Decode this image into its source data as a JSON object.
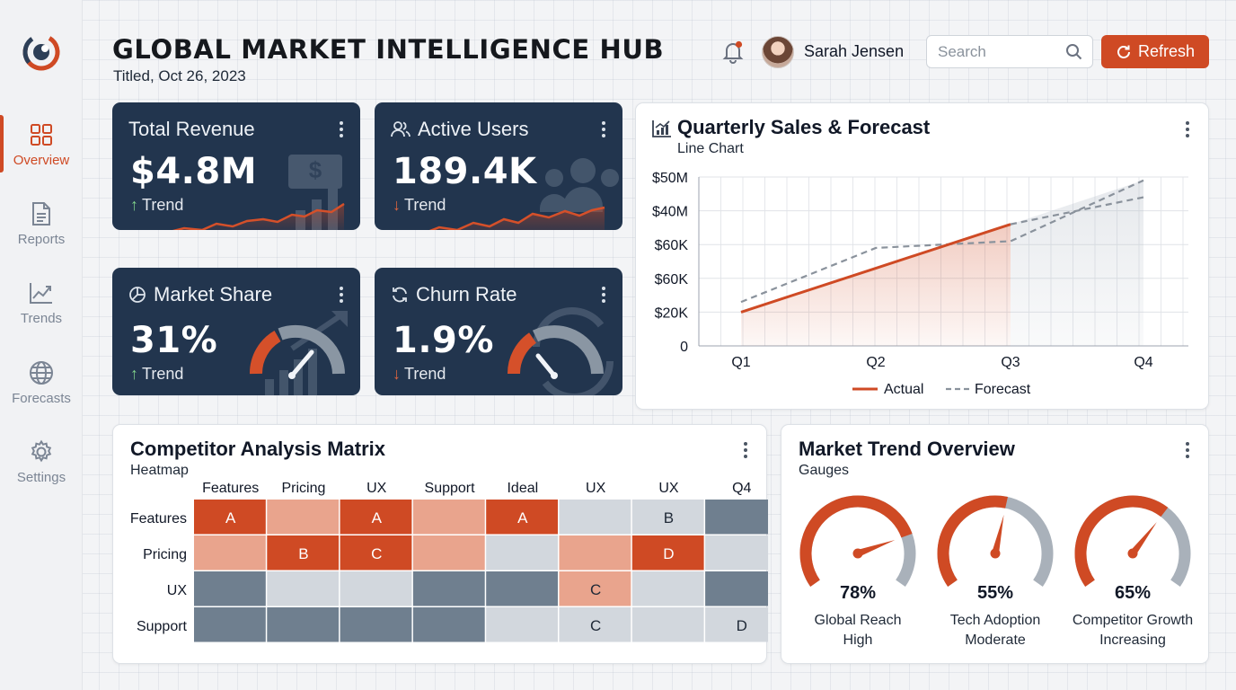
{
  "app": {
    "title": "GLOBAL MARKET INTELLIGENCE HUB",
    "subtitle": "Titled, Oct 26, 2023",
    "user_name": "Sarah Jensen",
    "search_placeholder": "Search",
    "refresh_label": "Refresh"
  },
  "sidebar": {
    "items": [
      {
        "label": "Overview",
        "icon": "grid-icon",
        "active": true
      },
      {
        "label": "Reports",
        "icon": "document-icon",
        "active": false
      },
      {
        "label": "Trends",
        "icon": "line-trend-icon",
        "active": false
      },
      {
        "label": "Forecasts",
        "icon": "globe-icon",
        "active": false
      },
      {
        "label": "Settings",
        "icon": "gear-icon",
        "active": false
      }
    ]
  },
  "kpis": [
    {
      "title": "Total Revenue",
      "value": "$4.8M",
      "trend": "Trend",
      "direction": "up"
    },
    {
      "title": "Active Users",
      "value": "189.4K",
      "trend": "Trend",
      "direction": "down"
    },
    {
      "title": "Market Share",
      "value": "31%",
      "trend": "Trend",
      "direction": "up"
    },
    {
      "title": "Churn Rate",
      "value": "1.9%",
      "trend": "Trend",
      "direction": "down"
    }
  ],
  "sales_chart": {
    "title": "Quarterly Sales & Forecast",
    "subtitle": "Line Chart",
    "legend": {
      "actual": "Actual",
      "forecast": "Forecast"
    }
  },
  "heatmap": {
    "title": "Competitor Analysis Matrix",
    "subtitle": "Heatmap"
  },
  "gauges": {
    "title": "Market Trend Overview",
    "subtitle": "Gauges",
    "items": [
      {
        "pct_label": "78%",
        "value": 0.78,
        "name": "Global Reach",
        "status": "High"
      },
      {
        "pct_label": "55%",
        "value": 0.55,
        "name": "Tech Adoption",
        "status": "Moderate"
      },
      {
        "pct_label": "65%",
        "value": 0.65,
        "name": "Competitor Growth",
        "status": "Increasing"
      }
    ]
  },
  "colors": {
    "accent": "#cf4a24",
    "navy": "#22354e",
    "forecast": "#8a929c",
    "heat_strong": "#cf4a24",
    "heat_light": "#e9a48d",
    "heat_pale": "#d2d7dd",
    "heat_dark": "#6f7f8f"
  },
  "chart_data": [
    {
      "type": "line",
      "title": "Quarterly Sales & Forecast",
      "subtitle": "Line Chart",
      "categories": [
        "Q1",
        "Q2",
        "Q3",
        "Q4"
      ],
      "y_ticks": [
        "$50M",
        "$40M",
        "$60K",
        "$60K",
        "$20K",
        "0"
      ],
      "ylim": [
        0,
        50
      ],
      "grid": true,
      "legend": "bottom",
      "series": [
        {
          "name": "Actual",
          "values": [
            10,
            23,
            36,
            null
          ]
        },
        {
          "name": "Forecast",
          "values": [
            13,
            29,
            31,
            49
          ]
        }
      ],
      "forecast_lower_q4": 44
    },
    {
      "type": "heatmap",
      "title": "Competitor Analysis Matrix",
      "subtitle": "Heatmap",
      "columns": [
        "Features",
        "Pricing",
        "UX",
        "Support",
        "Ideal",
        "UX",
        "UX",
        "Q4"
      ],
      "rows": [
        "Features",
        "Pricing",
        "UX",
        "Support"
      ],
      "levels": [
        [
          4,
          3,
          4,
          3,
          4,
          1,
          1,
          2
        ],
        [
          3,
          4,
          4,
          3,
          1,
          3,
          4,
          1
        ],
        [
          2,
          1,
          1,
          2,
          2,
          3,
          1,
          2
        ],
        [
          2,
          2,
          2,
          2,
          1,
          1,
          1,
          1
        ]
      ],
      "labels": [
        [
          "A",
          "",
          "A",
          "",
          "A",
          "",
          "B",
          ""
        ],
        [
          "",
          "B",
          "C",
          "",
          "",
          "",
          "D",
          ""
        ],
        [
          "",
          "",
          "",
          "",
          "",
          "C",
          "",
          ""
        ],
        [
          "",
          "",
          "",
          "",
          "",
          "C",
          "",
          "D"
        ]
      ],
      "level_key": {
        "1": "pale",
        "2": "dark",
        "3": "light",
        "4": "strong"
      }
    }
  ]
}
